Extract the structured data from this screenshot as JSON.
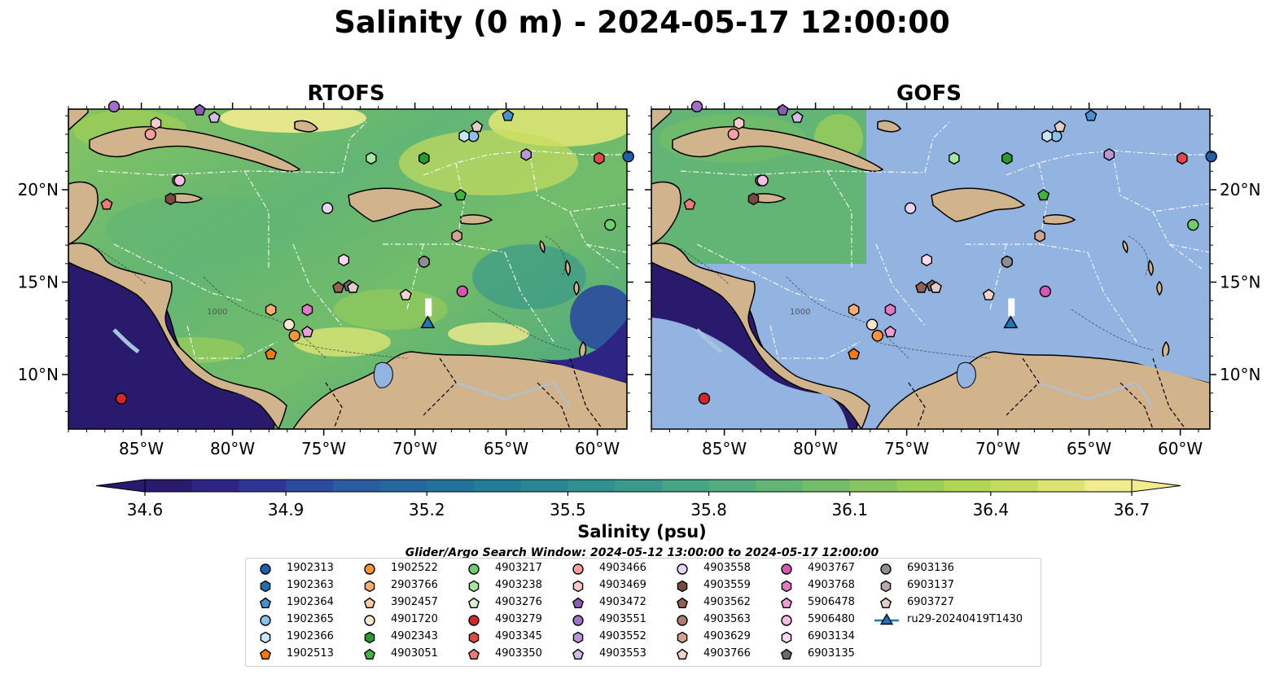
{
  "title": "Salinity (0 m) - 2024-05-17 12:00:00",
  "panels": [
    {
      "title": "RTOFS"
    },
    {
      "title": "GOFS"
    }
  ],
  "axes": {
    "lon_ticks": [
      "85°W",
      "80°W",
      "75°W",
      "70°W",
      "65°W",
      "60°W"
    ],
    "lat_ticks": [
      "20°N",
      "15°N",
      "10°N"
    ],
    "contour_labels": [
      "1000",
      "1000"
    ]
  },
  "colorbar": {
    "label": "Salinity (psu)",
    "ticks": [
      "34.6",
      "34.9",
      "35.2",
      "35.5",
      "35.8",
      "36.1",
      "36.4",
      "36.7"
    ],
    "colors": [
      "#2a1a6e",
      "#2d2483",
      "#2e3595",
      "#2b4b9e",
      "#2a5da0",
      "#25689f",
      "#23729c",
      "#257c99",
      "#2a8695",
      "#319090",
      "#3a998a",
      "#46a384",
      "#53ac7d",
      "#62b574",
      "#73bd6a",
      "#86c560",
      "#9bcd59",
      "#b1d555",
      "#c6dc5e",
      "#dce473",
      "#f1ec8f"
    ],
    "extend": "both"
  },
  "search_window": "Glider/Argo Search Window: 2024-05-12 13:00:00 to 2024-05-17 12:00:00",
  "colors": {
    "land": "#d2b48c",
    "gofs_ocean": "#93b3e0",
    "coast": "#000000",
    "eez": "#ffffff",
    "river": "#a7c3df"
  },
  "legend": [
    {
      "id": "1902313",
      "marker": "circle",
      "color": "#1f5fa8"
    },
    {
      "id": "1902363",
      "marker": "hexagon",
      "color": "#1f6fb5"
    },
    {
      "id": "1902364",
      "marker": "pentagon",
      "color": "#4a90cf"
    },
    {
      "id": "1902365",
      "marker": "circle",
      "color": "#8ec0ec"
    },
    {
      "id": "1902366",
      "marker": "hexagon",
      "color": "#c9e6fb"
    },
    {
      "id": "1902513",
      "marker": "pentagon",
      "color": "#f07a10"
    },
    {
      "id": "1902522",
      "marker": "circle",
      "color": "#f8943a"
    },
    {
      "id": "2903766",
      "marker": "hexagon",
      "color": "#fbae6b"
    },
    {
      "id": "3902457",
      "marker": "pentagon",
      "color": "#fccda0"
    },
    {
      "id": "4901720",
      "marker": "circle",
      "color": "#fde6cc"
    },
    {
      "id": "4902343",
      "marker": "hexagon",
      "color": "#2a9a2a"
    },
    {
      "id": "4903051",
      "marker": "pentagon",
      "color": "#3fb53f"
    },
    {
      "id": "4903217",
      "marker": "circle",
      "color": "#6dcf6d"
    },
    {
      "id": "4903238",
      "marker": "hexagon",
      "color": "#a6e6a0"
    },
    {
      "id": "4903276",
      "marker": "pentagon",
      "color": "#d6f5cf"
    },
    {
      "id": "4903279",
      "marker": "circle",
      "color": "#d62728"
    },
    {
      "id": "4903345",
      "marker": "hexagon",
      "color": "#e24848"
    },
    {
      "id": "4903350",
      "marker": "pentagon",
      "color": "#f07a7a"
    },
    {
      "id": "4903466",
      "marker": "circle",
      "color": "#f8a0a0"
    },
    {
      "id": "4903469",
      "marker": "hexagon",
      "color": "#fbcaca"
    },
    {
      "id": "4903472",
      "marker": "pentagon",
      "color": "#8c5bb5"
    },
    {
      "id": "4903551",
      "marker": "circle",
      "color": "#9f72c6"
    },
    {
      "id": "4903552",
      "marker": "hexagon",
      "color": "#b896d8"
    },
    {
      "id": "4903553",
      "marker": "pentagon",
      "color": "#d2bce8"
    },
    {
      "id": "4903558",
      "marker": "circle",
      "color": "#e6d5f5"
    },
    {
      "id": "4903559",
      "marker": "hexagon",
      "color": "#7a4a3e"
    },
    {
      "id": "4903562",
      "marker": "pentagon",
      "color": "#946050"
    },
    {
      "id": "4903563",
      "marker": "circle",
      "color": "#b07e6e"
    },
    {
      "id": "4903629",
      "marker": "hexagon",
      "color": "#d2a392"
    },
    {
      "id": "4903766",
      "marker": "pentagon",
      "color": "#f2d3c8"
    },
    {
      "id": "4903767",
      "marker": "circle",
      "color": "#d258b4"
    },
    {
      "id": "4903768",
      "marker": "hexagon",
      "color": "#e07cc5"
    },
    {
      "id": "5906478",
      "marker": "pentagon",
      "color": "#ec9ed5"
    },
    {
      "id": "5906480",
      "marker": "circle",
      "color": "#f4bde3"
    },
    {
      "id": "6903134",
      "marker": "hexagon",
      "color": "#fad8f0"
    },
    {
      "id": "6903135",
      "marker": "pentagon",
      "color": "#6b6b6b"
    },
    {
      "id": "6903136",
      "marker": "circle",
      "color": "#8f8f8f"
    },
    {
      "id": "6903137",
      "marker": "hexagon",
      "color": "#b8a8a8"
    },
    {
      "id": "6903727",
      "marker": "pentagon",
      "color": "#e2cdc8"
    },
    {
      "id": "ru29-20240419T1430",
      "marker": "triangle-line",
      "color": "#1f77b4"
    }
  ]
}
